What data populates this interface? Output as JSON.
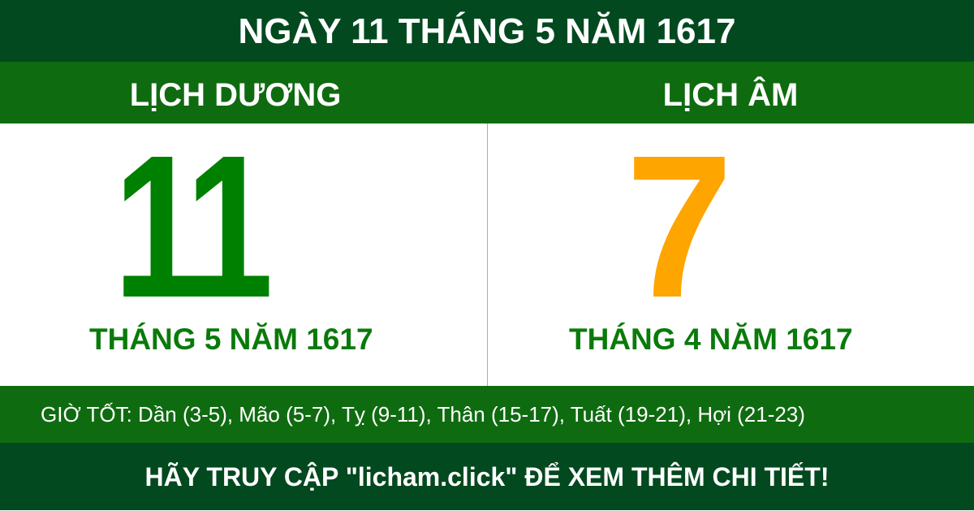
{
  "title": "NGÀY 11 THÁNG 5 NĂM 1617",
  "solar": {
    "label": "LỊCH DƯƠNG",
    "day": "11",
    "month_year": "THÁNG 5 NĂM 1617"
  },
  "lunar": {
    "label": "LỊCH ÂM",
    "day": "7",
    "month_year": "THÁNG 4 NĂM 1617"
  },
  "good_hours": "GIỜ TỐT: Dần (3-5), Mão (5-7), Tỵ (9-11), Thân (15-17), Tuất (19-21), Hợi (21-23)",
  "footer": "HÃY TRUY CẬP \"licham.click\" ĐỂ XEM THÊM CHI TIẾT!",
  "colors": {
    "dark_green": "#03491f",
    "green": "#0f6b10",
    "solar_day": "#008000",
    "lunar_day": "#ffa500"
  }
}
